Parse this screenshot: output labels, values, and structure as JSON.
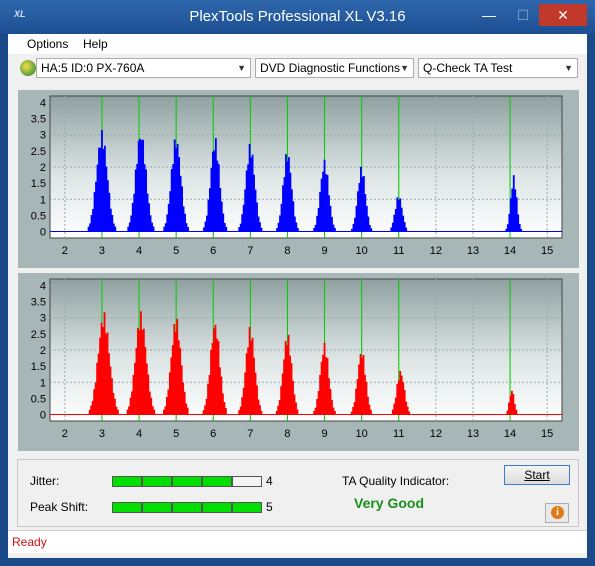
{
  "window": {
    "title": "PlexTools Professional XL V3.16",
    "icon_text": "XL"
  },
  "menu": {
    "options": "Options",
    "help": "Help"
  },
  "toolbar": {
    "drive": "HA:5 ID:0  PX-760A",
    "function": "DVD Diagnostic Functions",
    "test": "Q-Check TA Test"
  },
  "colors": {
    "top_bars": "#0000ff",
    "bottom_bars": "#ff0000",
    "marker": "#00cc00",
    "rating": "#1a8f1a"
  },
  "chart_data": [
    {
      "type": "bar",
      "x_ticks": [
        2,
        3,
        4,
        5,
        6,
        7,
        8,
        9,
        10,
        11,
        12,
        13,
        14,
        15
      ],
      "y_ticks": [
        0,
        0.5,
        1,
        1.5,
        2,
        2.5,
        3,
        3.5,
        4
      ],
      "xlim": [
        1.6,
        15.4
      ],
      "ylim": [
        -0.2,
        4.2
      ],
      "markers": [
        3,
        4,
        5,
        6,
        7,
        8,
        9,
        10,
        11,
        14
      ],
      "peaks": [
        {
          "center": 3.0,
          "height": 3.15,
          "width": 0.36
        },
        {
          "center": 4.05,
          "height": 3.2,
          "width": 0.34
        },
        {
          "center": 5.0,
          "height": 3.0,
          "width": 0.32
        },
        {
          "center": 6.05,
          "height": 2.95,
          "width": 0.3
        },
        {
          "center": 7.0,
          "height": 2.75,
          "width": 0.3
        },
        {
          "center": 8.0,
          "height": 2.55,
          "width": 0.28
        },
        {
          "center": 9.0,
          "height": 2.25,
          "width": 0.28
        },
        {
          "center": 10.0,
          "height": 2.05,
          "width": 0.26
        },
        {
          "center": 11.0,
          "height": 1.15,
          "width": 0.24
        },
        {
          "center": 14.1,
          "height": 1.75,
          "width": 0.2
        }
      ]
    },
    {
      "type": "bar",
      "x_ticks": [
        2,
        3,
        4,
        5,
        6,
        7,
        8,
        9,
        10,
        11,
        12,
        13,
        14,
        15
      ],
      "y_ticks": [
        0,
        0.5,
        1,
        1.5,
        2,
        2.5,
        3,
        3.5,
        4
      ],
      "xlim": [
        1.6,
        15.4
      ],
      "ylim": [
        -0.2,
        4.2
      ],
      "markers": [
        3,
        4,
        5,
        6,
        7,
        8,
        9,
        10,
        11,
        14
      ],
      "peaks": [
        {
          "center": 3.05,
          "height": 3.2,
          "width": 0.38
        },
        {
          "center": 4.05,
          "height": 3.2,
          "width": 0.36
        },
        {
          "center": 5.0,
          "height": 3.05,
          "width": 0.33
        },
        {
          "center": 6.05,
          "height": 2.95,
          "width": 0.31
        },
        {
          "center": 7.0,
          "height": 2.75,
          "width": 0.3
        },
        {
          "center": 8.0,
          "height": 2.55,
          "width": 0.29
        },
        {
          "center": 9.0,
          "height": 2.25,
          "width": 0.28
        },
        {
          "center": 10.0,
          "height": 2.05,
          "width": 0.27
        },
        {
          "center": 11.05,
          "height": 1.4,
          "width": 0.25
        },
        {
          "center": 14.05,
          "height": 0.8,
          "width": 0.16
        }
      ]
    }
  ],
  "results": {
    "jitter_label": "Jitter:",
    "jitter_value": "4",
    "jitter_level": 4,
    "peak_shift_label": "Peak Shift:",
    "peak_shift_value": "5",
    "peak_shift_level": 5,
    "meter_max": 5,
    "ta_label": "TA Quality Indicator:",
    "ta_rating": "Very Good",
    "start_button": "Start"
  },
  "status": {
    "text": "Ready"
  }
}
